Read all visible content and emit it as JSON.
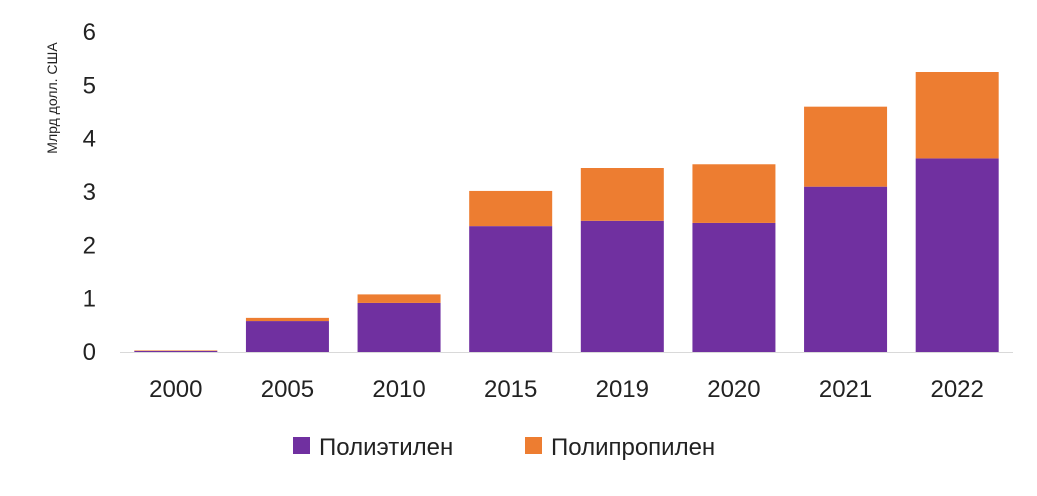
{
  "chart_data": {
    "type": "bar",
    "stacked": true,
    "title": "",
    "xlabel": "",
    "ylabel": "Млрд долл. США",
    "ylim": [
      0,
      6
    ],
    "yticks": [
      "0",
      "1",
      "2",
      "3",
      "4",
      "5",
      "6"
    ],
    "grid": false,
    "legend_position": "bottom",
    "categories": [
      "2000",
      "2005",
      "2010",
      "2015",
      "2019",
      "2020",
      "2021",
      "2022"
    ],
    "series": [
      {
        "name": "Полиэтилен",
        "color": "#7030A0",
        "values": [
          0.02,
          0.58,
          0.92,
          2.36,
          2.46,
          2.42,
          3.1,
          3.63
        ]
      },
      {
        "name": "Полипропилен",
        "color": "#ED7D31",
        "values": [
          0.01,
          0.06,
          0.16,
          0.66,
          0.99,
          1.1,
          1.5,
          1.62
        ]
      }
    ]
  }
}
